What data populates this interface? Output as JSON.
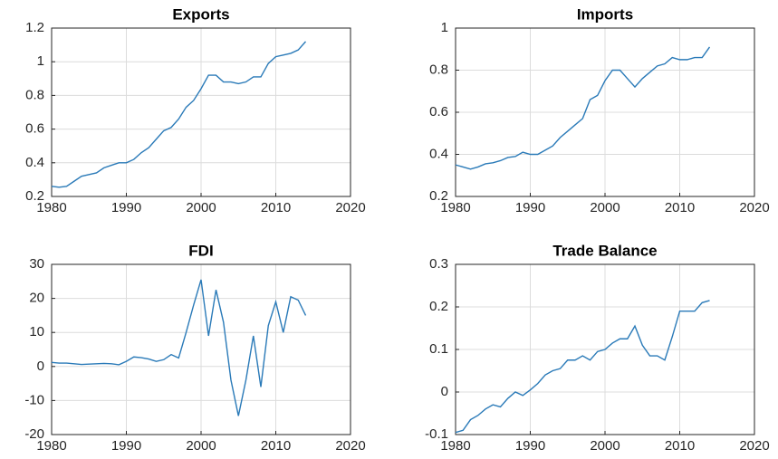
{
  "chart_data": [
    {
      "type": "line",
      "title": "Exports",
      "color": "#2a7ab8",
      "grid": true,
      "x": [
        1980,
        1981,
        1982,
        1983,
        1984,
        1985,
        1986,
        1987,
        1988,
        1989,
        1990,
        1991,
        1992,
        1993,
        1994,
        1995,
        1996,
        1997,
        1998,
        1999,
        2000,
        2001,
        2002,
        2003,
        2004,
        2005,
        2006,
        2007,
        2008,
        2009,
        2010,
        2011,
        2012,
        2013,
        2014
      ],
      "values": [
        0.26,
        0.255,
        0.26,
        0.29,
        0.32,
        0.33,
        0.34,
        0.37,
        0.385,
        0.4,
        0.4,
        0.42,
        0.46,
        0.49,
        0.54,
        0.59,
        0.61,
        0.66,
        0.73,
        0.77,
        0.84,
        0.92,
        0.92,
        0.88,
        0.88,
        0.87,
        0.88,
        0.91,
        0.91,
        0.99,
        1.03,
        1.04,
        1.05,
        1.07,
        1.12
      ],
      "xlim": [
        1980,
        2020
      ],
      "xticks": [
        1980,
        1990,
        2000,
        2010,
        2020
      ],
      "ylim": [
        0.2,
        1.2
      ],
      "yticks": [
        0.2,
        0.4,
        0.6,
        0.8,
        1,
        1.2
      ]
    },
    {
      "type": "line",
      "title": "Imports",
      "color": "#2a7ab8",
      "grid": true,
      "x": [
        1980,
        1981,
        1982,
        1983,
        1984,
        1985,
        1986,
        1987,
        1988,
        1989,
        1990,
        1991,
        1992,
        1993,
        1994,
        1995,
        1996,
        1997,
        1998,
        1999,
        2000,
        2001,
        2002,
        2003,
        2004,
        2005,
        2006,
        2007,
        2008,
        2009,
        2010,
        2011,
        2012,
        2013,
        2014
      ],
      "values": [
        0.35,
        0.34,
        0.33,
        0.34,
        0.355,
        0.36,
        0.37,
        0.385,
        0.39,
        0.41,
        0.4,
        0.4,
        0.42,
        0.44,
        0.48,
        0.51,
        0.54,
        0.57,
        0.66,
        0.68,
        0.75,
        0.8,
        0.8,
        0.76,
        0.72,
        0.76,
        0.79,
        0.82,
        0.83,
        0.86,
        0.85,
        0.85,
        0.86,
        0.86,
        0.91
      ],
      "xlim": [
        1980,
        2020
      ],
      "xticks": [
        1980,
        1990,
        2000,
        2010,
        2020
      ],
      "ylim": [
        0.2,
        1
      ],
      "yticks": [
        0.2,
        0.4,
        0.6,
        0.8,
        1
      ]
    },
    {
      "type": "line",
      "title": "FDI",
      "color": "#2a7ab8",
      "grid": true,
      "x": [
        1980,
        1981,
        1982,
        1983,
        1984,
        1985,
        1986,
        1987,
        1988,
        1989,
        1990,
        1991,
        1992,
        1993,
        1994,
        1995,
        1996,
        1997,
        1998,
        1999,
        2000,
        2001,
        2002,
        2003,
        2004,
        2005,
        2006,
        2007,
        2008,
        2009,
        2010,
        2011,
        2012,
        2013,
        2014
      ],
      "values": [
        1.2,
        1,
        1,
        0.8,
        0.6,
        0.7,
        0.8,
        0.9,
        0.8,
        0.5,
        1.5,
        2.8,
        2.6,
        2.2,
        1.5,
        2,
        3.5,
        2.5,
        10,
        18,
        25.5,
        9,
        22.5,
        13,
        -4,
        -14.5,
        -4,
        9,
        -6,
        12,
        19,
        10,
        20.5,
        19.5,
        15
      ],
      "xlim": [
        1980,
        2020
      ],
      "xticks": [
        1980,
        1990,
        2000,
        2010,
        2020
      ],
      "ylim": [
        -20,
        30
      ],
      "yticks": [
        -20,
        -10,
        0,
        10,
        20,
        30
      ]
    },
    {
      "type": "line",
      "title": "Trade Balance",
      "color": "#2a7ab8",
      "grid": true,
      "x": [
        1980,
        1981,
        1982,
        1983,
        1984,
        1985,
        1986,
        1987,
        1988,
        1989,
        1990,
        1991,
        1992,
        1993,
        1994,
        1995,
        1996,
        1997,
        1998,
        1999,
        2000,
        2001,
        2002,
        2003,
        2004,
        2005,
        2006,
        2007,
        2008,
        2009,
        2010,
        2011,
        2012,
        2013,
        2014
      ],
      "values": [
        -0.095,
        -0.09,
        -0.065,
        -0.055,
        -0.04,
        -0.03,
        -0.035,
        -0.015,
        0,
        -0.008,
        0.005,
        0.02,
        0.04,
        0.05,
        0.055,
        0.075,
        0.075,
        0.085,
        0.075,
        0.095,
        0.1,
        0.115,
        0.125,
        0.125,
        0.155,
        0.11,
        0.085,
        0.085,
        0.075,
        0.13,
        0.19,
        0.19,
        0.19,
        0.21,
        0.215
      ],
      "xlim": [
        1980,
        2020
      ],
      "xticks": [
        1980,
        1990,
        2000,
        2010,
        2020
      ],
      "ylim": [
        -0.1,
        0.3
      ],
      "yticks": [
        -0.1,
        0,
        0.1,
        0.2,
        0.3
      ]
    }
  ]
}
